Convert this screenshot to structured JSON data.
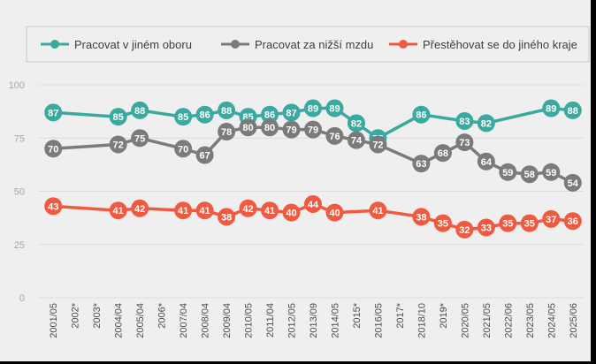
{
  "chart_data": {
    "type": "line",
    "categories": [
      "2001/05",
      "2002*",
      "2003*",
      "2004/04",
      "2005/04",
      "2006*",
      "2007/04",
      "2008/04",
      "2009/04",
      "2010/05",
      "2011/04",
      "2012/05",
      "2013/09",
      "2014/05",
      "2015*",
      "2016/05",
      "2017*",
      "2018/10",
      "2019*",
      "2020/05",
      "2021/05",
      "2022/06",
      "2023/05",
      "2024/05",
      "2025/06"
    ],
    "series": [
      {
        "name": "Pracovat v jiném oboru",
        "color": "#3aa9a0",
        "values": [
          87,
          null,
          null,
          85,
          88,
          null,
          85,
          86,
          88,
          85,
          86,
          87,
          89,
          89,
          82,
          75,
          null,
          86,
          null,
          83,
          82,
          null,
          null,
          89,
          88
        ],
        "labels": [
          "87",
          "",
          "",
          "85",
          "88",
          "",
          "85",
          "86",
          "88",
          "85",
          "86",
          "87",
          "89",
          "89",
          "82",
          "75",
          "",
          "86",
          "",
          "83",
          "82",
          "",
          "",
          "89",
          "88"
        ]
      },
      {
        "name": "Pracovat za nižší mzdu",
        "color": "#7b7b7b",
        "values": [
          70,
          null,
          null,
          72,
          75,
          null,
          70,
          67,
          78,
          80,
          80,
          79,
          79,
          76,
          74,
          72,
          null,
          63,
          68,
          73,
          64,
          59,
          58,
          59,
          54
        ],
        "labels": [
          "70",
          "",
          "",
          "72",
          "75",
          "",
          "70",
          "67",
          "78",
          "80",
          "80",
          "79",
          "79",
          "76",
          "74",
          "72",
          "",
          "63",
          "68",
          "73",
          "64",
          "59",
          "58",
          "59",
          "54"
        ]
      },
      {
        "name": "Přestěhovat se do jiného kraje",
        "color": "#f05a40",
        "values": [
          43,
          null,
          null,
          41,
          42,
          null,
          41,
          41,
          38,
          42,
          41,
          40,
          44,
          40,
          null,
          41,
          null,
          38,
          35,
          32,
          33,
          35,
          35,
          37,
          36
        ],
        "labels": [
          "43",
          "",
          "",
          "41",
          "42",
          "",
          "41",
          "41",
          "38",
          "42",
          "41",
          "40",
          "44",
          "40",
          "",
          "41",
          "",
          "38",
          "35",
          "32",
          "33",
          "35",
          "35",
          "37",
          "36"
        ]
      }
    ],
    "title": "",
    "xlabel": "",
    "ylabel": "",
    "ylim": [
      0,
      100
    ],
    "yticks": [
      "0",
      "25",
      "50",
      "75",
      "100"
    ],
    "legend_position": "top"
  }
}
